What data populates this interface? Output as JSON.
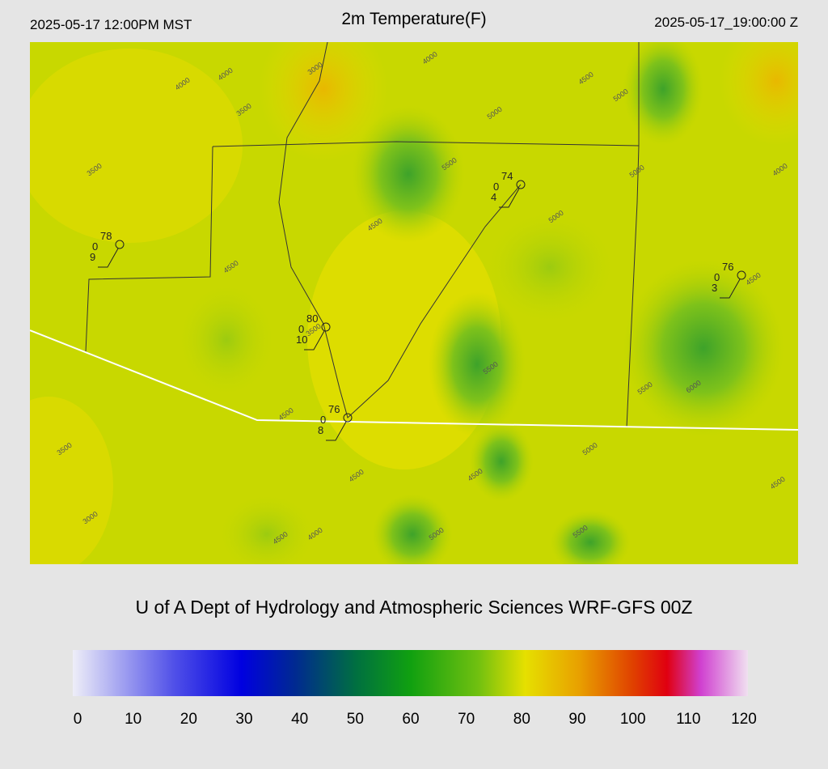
{
  "header": {
    "left": "2025-05-17 12:00PM MST",
    "title": "2m Temperature(F)",
    "right": "2025-05-17_19:00:00 Z"
  },
  "stations": [
    {
      "temperature": 78,
      "dewpoint": 0,
      "wind": 9
    },
    {
      "temperature": 74,
      "dewpoint": 0,
      "wind": 4
    },
    {
      "temperature": 76,
      "dewpoint": 0,
      "wind": 3
    },
    {
      "temperature": 80,
      "dewpoint": 0,
      "wind": 10
    },
    {
      "temperature": 76,
      "dewpoint": 0,
      "wind": 8
    }
  ],
  "contour_labels": [
    4000,
    4000,
    3500,
    3000,
    4000,
    4500,
    5000,
    5000,
    5500,
    5000,
    4000,
    3500,
    4500,
    5000,
    4500,
    4500,
    3500,
    5500,
    5500,
    6000,
    4500,
    3500,
    5000,
    4500,
    4500,
    4500,
    3000,
    4000,
    5000,
    4500,
    5500
  ],
  "footer": "U of A Dept of Hydrology and Atmospheric Sciences WRF-GFS 00Z",
  "colorbar": {
    "range": [
      0,
      120
    ],
    "ticks": [
      0,
      10,
      20,
      30,
      40,
      50,
      60,
      70,
      80,
      90,
      100,
      110,
      120
    ]
  }
}
